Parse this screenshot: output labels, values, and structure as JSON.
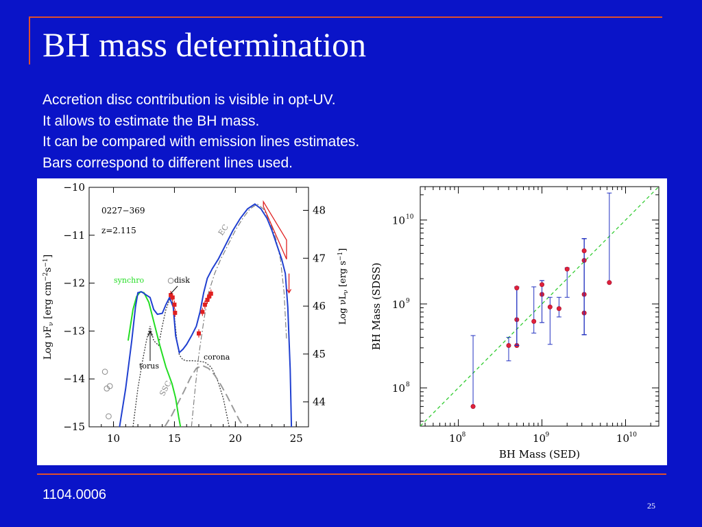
{
  "slide": {
    "title": "BH mass determination",
    "bullets": [
      "Accretion disc contribution is visible in opt-UV.",
      "It allows to estimate the BH mass.",
      "It can be compared with emission lines estimates.",
      "Bars correspond to different lines used."
    ],
    "footer": "1104.0006",
    "page_number": "25",
    "colors": {
      "background": "#0A14C8",
      "accent": "#E0502A",
      "text": "#FFFFFF"
    }
  },
  "chart_data": [
    {
      "type": "line",
      "annotations": {
        "source": "0227−369",
        "redshift": "z=2.115",
        "synchro": "synchro",
        "disk": "disk",
        "torus": "torus",
        "corona": "corona",
        "ssc": "SSC",
        "ec": "EC"
      },
      "xlim": [
        8,
        26
      ],
      "ylim": [
        -15,
        -10
      ],
      "y2lim": [
        43.48,
        48.48
      ],
      "xticks": [
        "10",
        "15",
        "20",
        "25"
      ],
      "yticks": [
        "−10",
        "−11",
        "−12",
        "−13",
        "−14",
        "−15"
      ],
      "y2ticks": [
        "44",
        "45",
        "46",
        "47",
        "48"
      ],
      "ylabel_parts": [
        "Log ",
        "νF",
        "ν",
        "  [erg cm",
        "−2",
        "s",
        "−1",
        "]"
      ],
      "y2label_parts": [
        "Log ",
        "νL",
        "ν",
        "  [erg s",
        "−1",
        "]"
      ],
      "colors": {
        "total": "#1F3FD0",
        "synchro": "#22DD22",
        "data": "#E02020",
        "components": "#555555"
      },
      "series": [
        {
          "name": "total",
          "x": [
            10.5,
            11.0,
            11.5,
            11.8,
            12.0,
            12.3,
            12.7,
            13.0,
            13.3,
            13.6,
            14.0,
            14.3,
            14.6,
            14.9,
            15.1,
            15.4,
            15.7,
            16.0,
            16.4,
            16.8,
            17.1,
            17.4,
            17.7,
            18.1,
            18.6,
            19.2,
            19.8,
            20.4,
            21.0,
            21.6,
            22.1,
            22.6,
            23.0,
            23.4,
            23.8,
            24.1,
            24.3,
            24.5,
            24.6
          ],
          "y": [
            -15,
            -14.2,
            -13.2,
            -12.5,
            -12.2,
            -12.18,
            -12.25,
            -12.3,
            -12.55,
            -12.65,
            -12.63,
            -12.45,
            -12.3,
            -12.5,
            -13.1,
            -13.45,
            -13.38,
            -13.28,
            -13.1,
            -12.9,
            -12.6,
            -12.2,
            -11.9,
            -11.7,
            -11.5,
            -11.2,
            -10.9,
            -10.65,
            -10.45,
            -10.35,
            -10.45,
            -10.65,
            -10.9,
            -11.2,
            -11.5,
            -11.8,
            -12.5,
            -13.8,
            -15
          ]
        },
        {
          "name": "synchro",
          "x": [
            11.2,
            11.6,
            11.9,
            12.2,
            12.5,
            12.9,
            13.3,
            13.8,
            14.3,
            14.8,
            15.1,
            15.35,
            15.5
          ],
          "y": [
            -13.2,
            -12.55,
            -12.28,
            -12.18,
            -12.2,
            -12.4,
            -12.8,
            -13.3,
            -13.75,
            -14.1,
            -14.4,
            -14.8,
            -15
          ]
        },
        {
          "name": "disk_torus",
          "x": [
            11.6,
            12.0,
            12.4,
            12.7,
            13.0,
            13.3,
            13.7,
            14.0,
            14.3,
            14.6,
            14.8,
            15.0,
            15.2,
            15.4,
            15.7,
            16.0,
            16.5,
            17.0,
            17.5,
            18.0,
            18.5,
            19.0,
            19.5
          ],
          "y": [
            -15,
            -14.2,
            -13.6,
            -13.2,
            -12.9,
            -13.2,
            -13.3,
            -12.9,
            -12.55,
            -12.35,
            -12.3,
            -12.7,
            -13.2,
            -13.5,
            -13.6,
            -13.62,
            -13.62,
            -13.63,
            -13.65,
            -13.75,
            -14.0,
            -14.4,
            -15
          ]
        },
        {
          "name": "ssc",
          "x": [
            14.2,
            14.8,
            15.3,
            15.8,
            16.3,
            16.8,
            17.3,
            17.8,
            18.3,
            18.8,
            19.3,
            19.8,
            20.3,
            20.7
          ],
          "y": [
            -15,
            -14.75,
            -14.5,
            -14.25,
            -13.98,
            -13.78,
            -13.72,
            -13.78,
            -13.92,
            -14.12,
            -14.35,
            -14.6,
            -14.85,
            -15
          ]
        },
        {
          "name": "ec",
          "x": [
            16.4,
            16.7,
            17.0,
            17.4,
            17.8,
            18.3,
            18.8,
            19.4,
            20.0,
            20.6,
            21.2,
            21.8,
            22.3,
            22.8,
            23.3,
            23.7,
            24.0,
            24.2
          ],
          "y": [
            -15,
            -14.2,
            -13.5,
            -12.8,
            -12.2,
            -11.8,
            -11.5,
            -11.2,
            -10.9,
            -10.65,
            -10.45,
            -10.35,
            -10.45,
            -10.7,
            -11.05,
            -11.5,
            -12.2,
            -13.2
          ]
        },
        {
          "name": "data",
          "x": [
            14.7,
            14.85,
            15.0,
            15.05,
            17.0,
            17.3,
            17.5,
            17.7,
            17.85,
            18.0
          ],
          "y": [
            -12.25,
            -12.3,
            -12.45,
            -12.62,
            -13.05,
            -12.6,
            -12.45,
            -12.35,
            -12.28,
            -12.22
          ]
        },
        {
          "name": "archival",
          "x": [
            9.3,
            9.7,
            9.45,
            9.6,
            14.7
          ],
          "y": [
            -13.85,
            -14.15,
            -14.2,
            -14.78,
            -11.95
          ]
        }
      ]
    },
    {
      "type": "scatter",
      "xlabel": "BH Mass (SED)",
      "ylabel": "BH Mass (SDSS)",
      "xscale": "log",
      "yscale": "log",
      "xlim": [
        35000000.0,
        25000000000.0
      ],
      "ylim": [
        35000000.0,
        25000000000.0
      ],
      "xticks": [
        100000000.0,
        1000000000.0,
        10000000000.0
      ],
      "yticks": [
        100000000.0,
        1000000000.0,
        10000000000.0
      ],
      "xtick_labels": [
        "10",
        "10",
        "10"
      ],
      "ytick_labels": [
        "10",
        "10",
        "10"
      ],
      "tick_exponents": [
        "8",
        "9",
        "10"
      ],
      "reference_line": "y = x",
      "colors": {
        "points": "#E0203A",
        "errorbars": "#2030C0",
        "reference_line": "#33CC33"
      },
      "points": [
        {
          "x": 150000000.0,
          "y": 60000000.0,
          "ylo": 60000000.0,
          "yhi": 420000000.0
        },
        {
          "x": 400000000.0,
          "y": 320000000.0,
          "ylo": 210000000.0,
          "yhi": 400000000.0
        },
        {
          "x": 500000000.0,
          "y": 320000000.0,
          "ylo": 320000000.0,
          "yhi": 1600000000.0
        },
        {
          "x": 500000000.0,
          "y": 650000000.0,
          "ylo": 320000000.0,
          "yhi": 1600000000.0
        },
        {
          "x": 500000000.0,
          "y": 1550000000.0,
          "ylo": 320000000.0,
          "yhi": 1600000000.0
        },
        {
          "x": 800000000.0,
          "y": 620000000.0,
          "ylo": 450000000.0,
          "yhi": 1600000000.0
        },
        {
          "x": 1000000000.0,
          "y": 1300000000.0,
          "ylo": 600000000.0,
          "yhi": 1900000000.0
        },
        {
          "x": 1000000000.0,
          "y": 1700000000.0,
          "ylo": 600000000.0,
          "yhi": 1900000000.0
        },
        {
          "x": 1250000000.0,
          "y": 920000000.0,
          "ylo": 330000000.0,
          "yhi": 1200000000.0
        },
        {
          "x": 1600000000.0,
          "y": 880000000.0,
          "ylo": 700000000.0,
          "yhi": 1200000000.0
        },
        {
          "x": 2000000000.0,
          "y": 2600000000.0,
          "ylo": 1200000000.0,
          "yhi": 2700000000.0
        },
        {
          "x": 3200000000.0,
          "y": 780000000.0,
          "ylo": 430000000.0,
          "yhi": 6000000000.0
        },
        {
          "x": 3200000000.0,
          "y": 1300000000.0,
          "ylo": 430000000.0,
          "yhi": 6000000000.0
        },
        {
          "x": 3200000000.0,
          "y": 3300000000.0,
          "ylo": 430000000.0,
          "yhi": 6000000000.0
        },
        {
          "x": 3200000000.0,
          "y": 4300000000.0,
          "ylo": 430000000.0,
          "yhi": 6000000000.0
        },
        {
          "x": 6400000000.0,
          "y": 1800000000.0,
          "ylo": 1800000000.0,
          "yhi": 21000000000.0
        }
      ]
    }
  ]
}
